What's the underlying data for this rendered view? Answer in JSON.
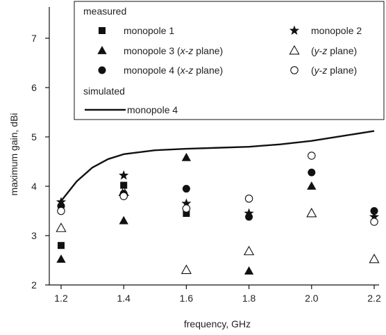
{
  "chart_data": {
    "type": "scatter",
    "title": "",
    "xlabel": "frequency, GHz",
    "ylabel": "maximum gain, dBi",
    "xlim": [
      1.2,
      2.2
    ],
    "ylim": [
      2,
      7
    ],
    "x_ticks": [
      "1.2",
      "1.4",
      "1.6",
      "1.8",
      "2.0",
      "2.2"
    ],
    "y_ticks": [
      "2",
      "3",
      "4",
      "5",
      "6",
      "7"
    ],
    "legend": {
      "placement": "top",
      "measured_heading": "measured",
      "simulated_heading": "simulated"
    },
    "series": [
      {
        "name": "monopole 1",
        "marker": "filled-square",
        "x": [
          1.2,
          1.4,
          1.6
        ],
        "y": [
          2.8,
          4.02,
          3.45
        ]
      },
      {
        "name": "monopole 2",
        "marker": "filled-star",
        "x": [
          1.2,
          1.4,
          1.6,
          1.8,
          2.2
        ],
        "y": [
          3.68,
          4.22,
          3.65,
          3.45,
          3.38
        ]
      },
      {
        "name": "monopole 3 (x-z plane)",
        "marker": "filled-triangle",
        "x": [
          1.2,
          1.4,
          1.6,
          1.8,
          2.0
        ],
        "y": [
          2.52,
          3.3,
          4.58,
          2.28,
          4.0
        ]
      },
      {
        "name": "(y-z plane)",
        "legend_column": "right",
        "legend_row": 2,
        "marker": "open-triangle",
        "x": [
          1.2,
          1.4,
          1.6,
          1.8,
          2.0,
          2.2
        ],
        "y": [
          3.15,
          3.88,
          2.3,
          2.68,
          3.45,
          2.52
        ]
      },
      {
        "name": "monopole 4 (x-z plane)",
        "marker": "filled-circle",
        "x": [
          1.2,
          1.4,
          1.6,
          1.8,
          2.0,
          2.2
        ],
        "y": [
          3.6,
          3.85,
          3.95,
          3.38,
          4.28,
          3.5
        ]
      },
      {
        "name": "(y-z plane)",
        "legend_column": "right",
        "legend_row": 3,
        "marker": "open-circle",
        "x": [
          1.2,
          1.4,
          1.6,
          1.8,
          2.0,
          2.2
        ],
        "y": [
          3.5,
          3.8,
          3.55,
          3.75,
          4.62,
          3.28
        ]
      },
      {
        "name": "monopole 4",
        "marker": "line",
        "group": "simulated",
        "x": [
          1.2,
          1.25,
          1.3,
          1.35,
          1.4,
          1.5,
          1.6,
          1.7,
          1.8,
          1.9,
          2.0,
          2.1,
          2.2
        ],
        "y": [
          3.7,
          4.1,
          4.38,
          4.55,
          4.65,
          4.73,
          4.76,
          4.78,
          4.8,
          4.85,
          4.92,
          5.02,
          5.12
        ]
      }
    ]
  }
}
